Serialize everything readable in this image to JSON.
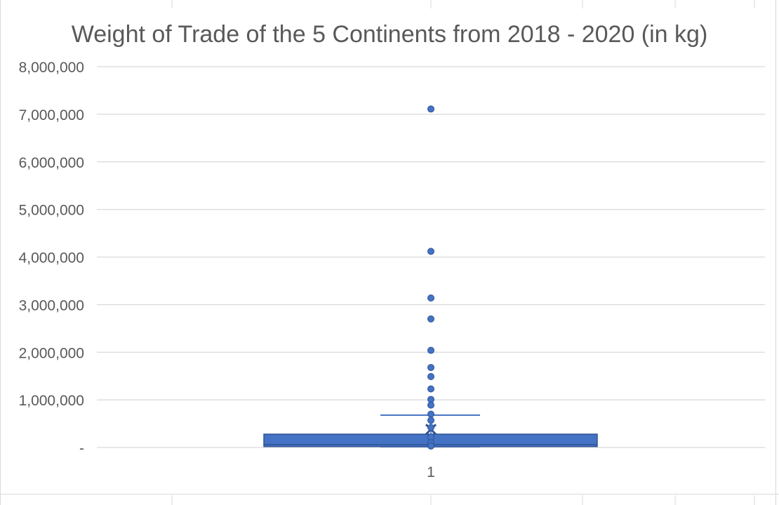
{
  "chart_data": {
    "type": "box",
    "title": "Weight of Trade of the 5 Continents from 2018 - 2020 (in kg)",
    "categories": [
      "1"
    ],
    "xlabel": "",
    "ylabel": "",
    "ylim": [
      0,
      8000000
    ],
    "y_ticks": [
      0,
      1000000,
      2000000,
      3000000,
      4000000,
      5000000,
      6000000,
      7000000,
      8000000
    ],
    "y_tick_labels": [
      "-",
      "1,000,000",
      "2,000,000",
      "3,000,000",
      "4,000,000",
      "5,000,000",
      "6,000,000",
      "7,000,000",
      "8,000,000"
    ],
    "grid": true,
    "legend": "none",
    "color": "#4472C4",
    "box": {
      "min": 0,
      "q1": 20000,
      "median": 60000,
      "q3": 280000,
      "whisker_max": 680000,
      "mean": 380000
    },
    "outliers": [
      7110000,
      4120000,
      3140000,
      2700000,
      2040000,
      1680000,
      1490000,
      1230000,
      1010000,
      890000,
      700000,
      570000,
      420000,
      220000,
      100000,
      30000
    ]
  }
}
